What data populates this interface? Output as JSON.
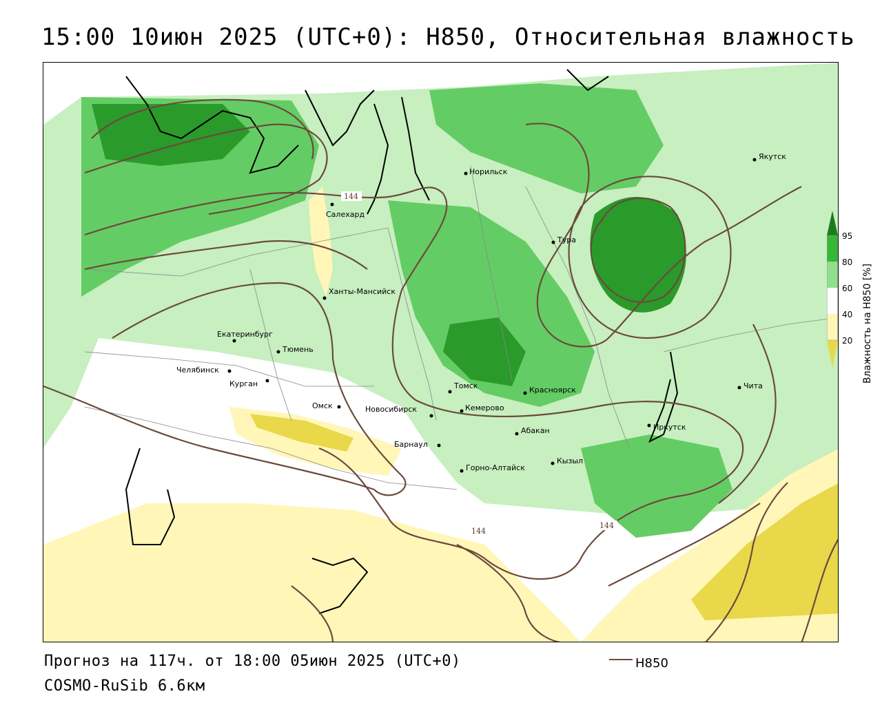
{
  "title": "15:00 10июн 2025 (UTC+0): H850, Относительная влажность",
  "forecast": "Прогноз на 117ч. от 18:00 05июн 2025 (UTC+0)",
  "model": "COSMO-RuSib 6.6км",
  "legend": {
    "line_label": "H850",
    "line_color": "#6b4a3c"
  },
  "colorbar": {
    "title": "Влажность на H850 [%]",
    "ticks": [
      "95",
      "80",
      "60",
      "40",
      "20"
    ],
    "colors": [
      "#1e7a1e",
      "#35b835",
      "#8ee08e",
      "#ffffff",
      "#fff6b8",
      "#e8d84a"
    ]
  },
  "contour_labels": [
    "144",
    "144",
    "144"
  ],
  "cities": [
    {
      "name": "Якутск"
    },
    {
      "name": "Норильск"
    },
    {
      "name": "Салехард"
    },
    {
      "name": "Тура"
    },
    {
      "name": "Ханты-Мансийск"
    },
    {
      "name": "Екатеринбург"
    },
    {
      "name": "Тюмень"
    },
    {
      "name": "Челябинск"
    },
    {
      "name": "Курган"
    },
    {
      "name": "Томск"
    },
    {
      "name": "Красноярск"
    },
    {
      "name": "Чита"
    },
    {
      "name": "Омск"
    },
    {
      "name": "Новосибирск"
    },
    {
      "name": "Кемерово"
    },
    {
      "name": "Иркутск"
    },
    {
      "name": "Абакан"
    },
    {
      "name": "Барнаул"
    },
    {
      "name": "Кызыл"
    },
    {
      "name": "Горно-Алтайск"
    }
  ]
}
